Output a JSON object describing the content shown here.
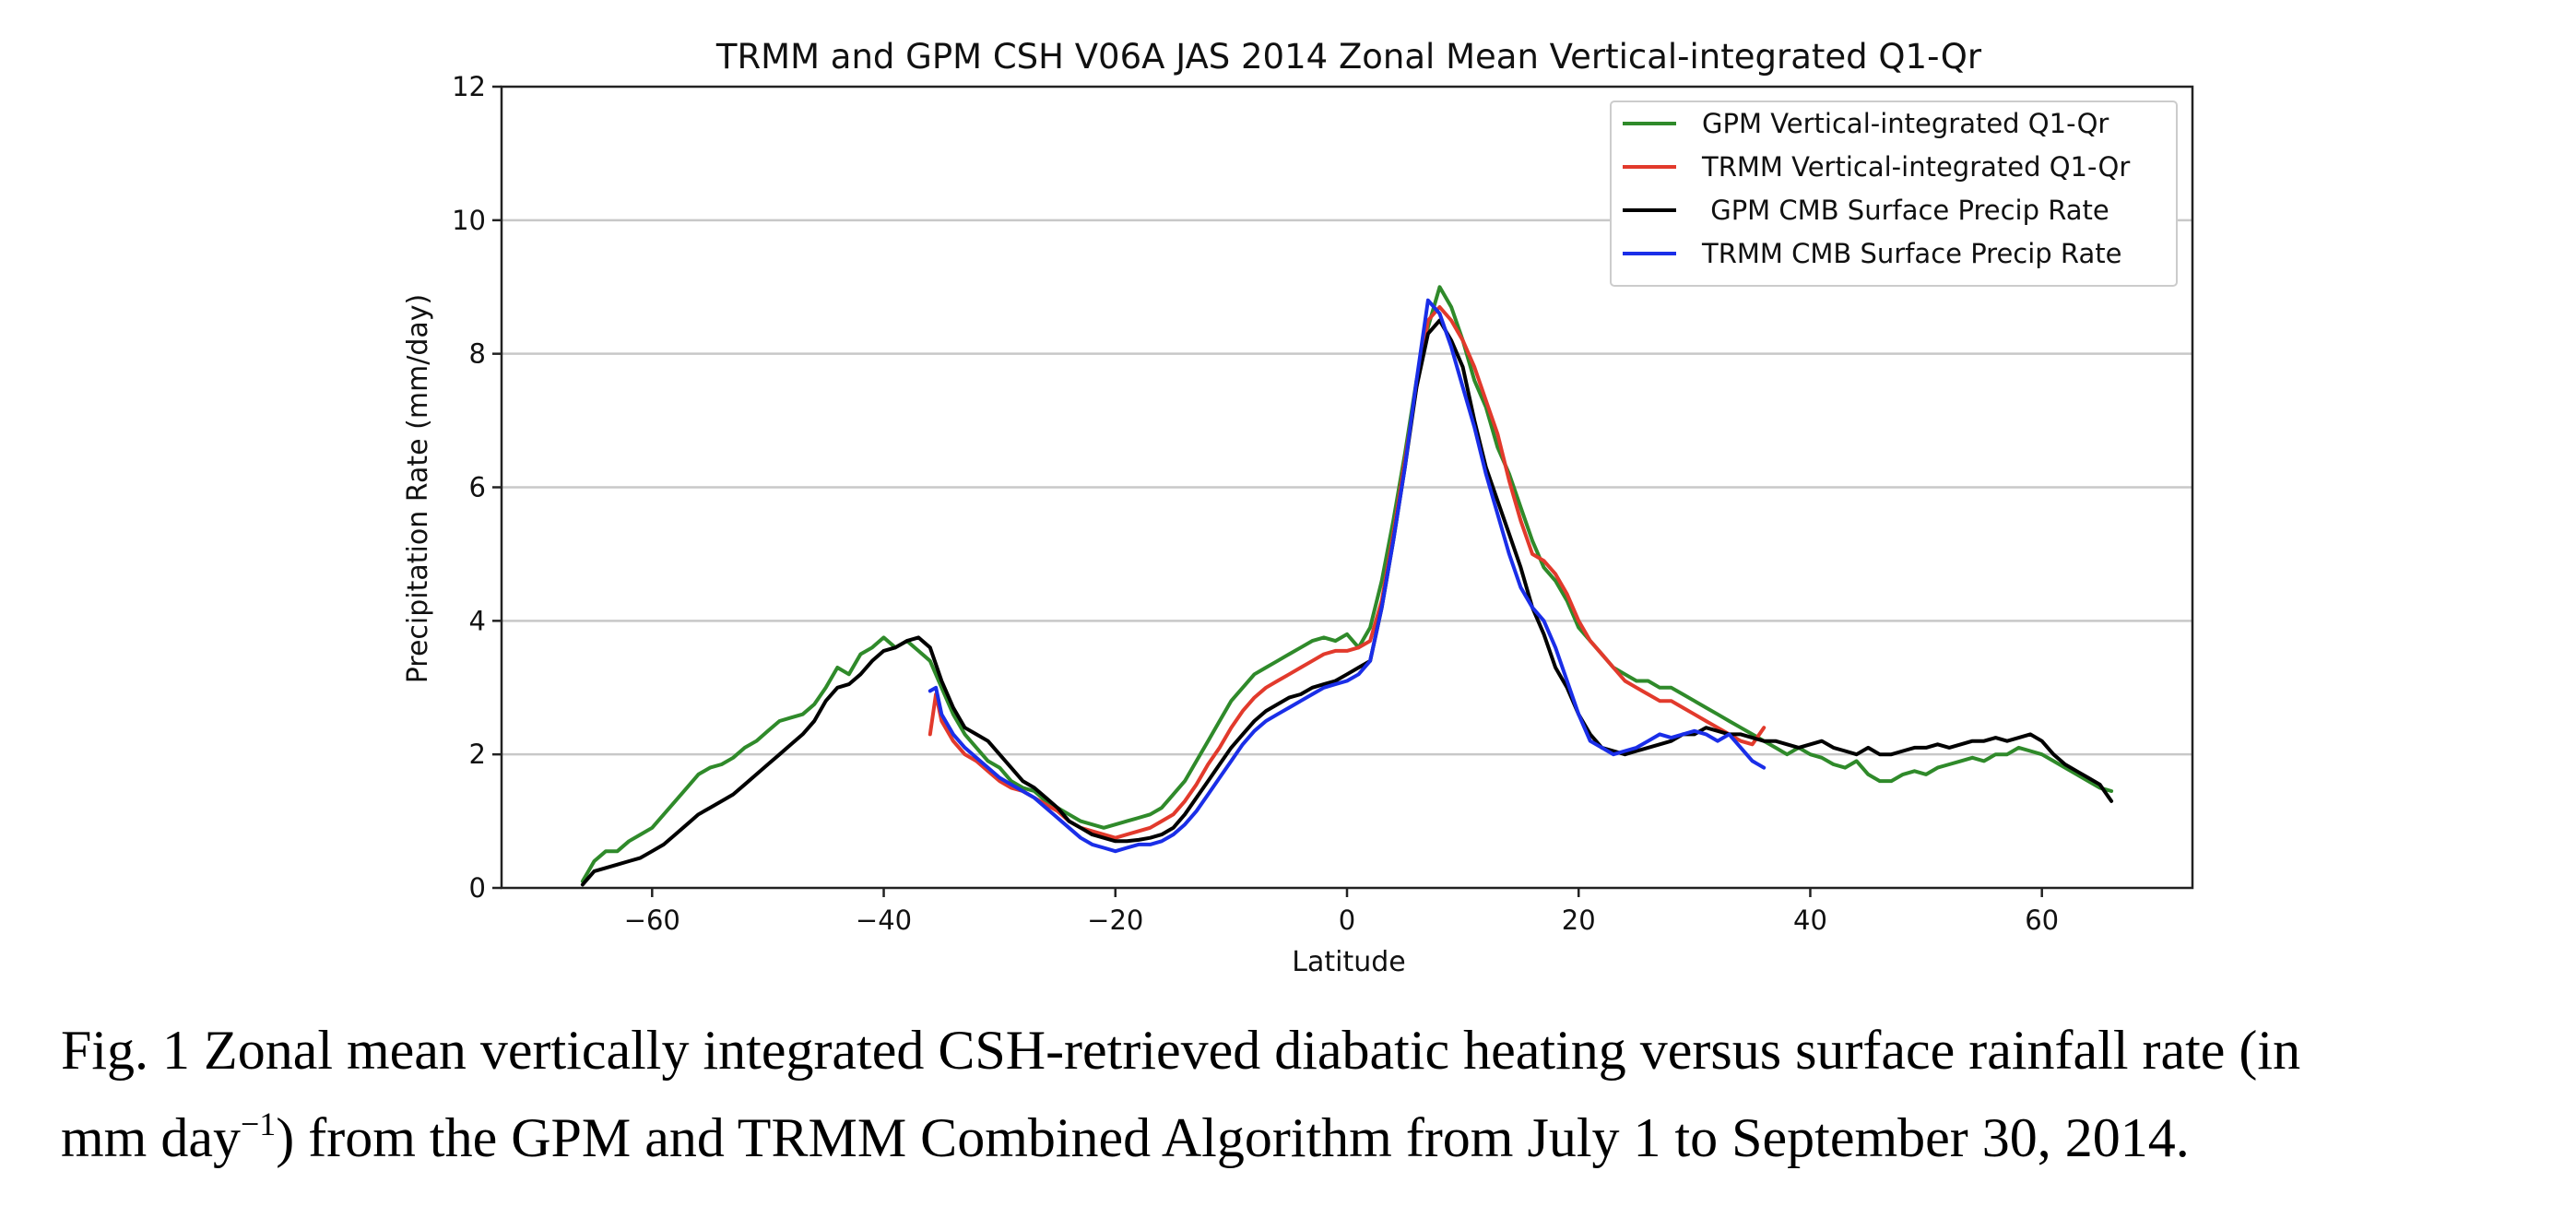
{
  "chart_data": {
    "type": "line",
    "title": "TRMM and GPM CSH V06A JAS 2014 Zonal Mean Vertical-integrated Q1-Qr",
    "xlabel": "Latitude",
    "ylabel": "Precipitation Rate (mm/day)",
    "xlim": [
      -73,
      73
    ],
    "ylim": [
      0,
      12
    ],
    "xticks": [
      -60,
      -40,
      -20,
      0,
      20,
      40,
      60
    ],
    "xtick_labels": [
      "−60",
      "−40",
      "−20",
      "0",
      "20",
      "40",
      "60"
    ],
    "yticks": [
      0,
      2,
      4,
      6,
      8,
      10,
      12
    ],
    "ytick_labels": [
      "0",
      "2",
      "4",
      "6",
      "8",
      "10",
      "12"
    ],
    "grid": "horizontal",
    "legend_position": "top-right",
    "series": [
      {
        "name": "GPM Vertical-integrated Q1-Qr",
        "color": "#2f8a2a",
        "x": [
          -66,
          -65,
          -64,
          -63,
          -62,
          -61,
          -60,
          -59,
          -58,
          -57,
          -56,
          -55,
          -54,
          -53,
          -52,
          -51,
          -50,
          -49,
          -48,
          -47,
          -46,
          -45,
          -44,
          -43,
          -42,
          -41,
          -40,
          -39,
          -38,
          -37,
          -36,
          -35,
          -34,
          -33,
          -32,
          -31,
          -30,
          -29,
          -28,
          -27,
          -26,
          -25,
          -24,
          -23,
          -22,
          -21,
          -20,
          -19,
          -18,
          -17,
          -16,
          -15,
          -14,
          -13,
          -12,
          -11,
          -10,
          -9,
          -8,
          -7,
          -6,
          -5,
          -4,
          -3,
          -2,
          -1,
          0,
          1,
          2,
          3,
          4,
          5,
          6,
          7,
          8,
          9,
          10,
          11,
          12,
          13,
          14,
          15,
          16,
          17,
          18,
          19,
          20,
          21,
          22,
          23,
          24,
          25,
          26,
          27,
          28,
          29,
          30,
          31,
          32,
          33,
          34,
          35,
          36,
          37,
          38,
          39,
          40,
          41,
          42,
          43,
          44,
          45,
          46,
          47,
          48,
          49,
          50,
          51,
          52,
          53,
          54,
          55,
          56,
          57,
          58,
          59,
          60,
          61,
          62,
          63,
          64,
          65,
          66
        ],
        "values": [
          0.1,
          0.4,
          0.55,
          0.55,
          0.7,
          0.8,
          0.9,
          1.1,
          1.3,
          1.5,
          1.7,
          1.8,
          1.85,
          1.95,
          2.1,
          2.2,
          2.35,
          2.5,
          2.55,
          2.6,
          2.75,
          3.0,
          3.3,
          3.2,
          3.5,
          3.6,
          3.75,
          3.6,
          3.7,
          3.55,
          3.4,
          3.0,
          2.6,
          2.3,
          2.1,
          1.9,
          1.8,
          1.6,
          1.5,
          1.45,
          1.3,
          1.2,
          1.1,
          1.0,
          0.95,
          0.9,
          0.95,
          1.0,
          1.05,
          1.1,
          1.2,
          1.4,
          1.6,
          1.9,
          2.2,
          2.5,
          2.8,
          3.0,
          3.2,
          3.3,
          3.4,
          3.5,
          3.6,
          3.7,
          3.75,
          3.7,
          3.8,
          3.6,
          3.9,
          4.6,
          5.5,
          6.5,
          7.6,
          8.4,
          9.0,
          8.7,
          8.2,
          7.6,
          7.2,
          6.6,
          6.2,
          5.7,
          5.2,
          4.8,
          4.6,
          4.3,
          3.9,
          3.7,
          3.5,
          3.3,
          3.2,
          3.1,
          3.1,
          3.0,
          3.0,
          2.9,
          2.8,
          2.7,
          2.6,
          2.5,
          2.4,
          2.3,
          2.2,
          2.1,
          2.0,
          2.1,
          2.0,
          1.95,
          1.85,
          1.8,
          1.9,
          1.7,
          1.6,
          1.6,
          1.7,
          1.75,
          1.7,
          1.8,
          1.85,
          1.9,
          1.95,
          1.9,
          2.0,
          2.0,
          2.1,
          2.05,
          2.0,
          1.9,
          1.8,
          1.7,
          1.6,
          1.5,
          1.45
        ]
      },
      {
        "name": "TRMM Vertical-integrated Q1-Qr",
        "color": "#e23a2c",
        "x": [
          -36,
          -35.5,
          -35,
          -34,
          -33,
          -32,
          -31,
          -30,
          -29,
          -28,
          -27,
          -26,
          -25,
          -24,
          -23,
          -22,
          -21,
          -20,
          -19,
          -18,
          -17,
          -16,
          -15,
          -14,
          -13,
          -12,
          -11,
          -10,
          -9,
          -8,
          -7,
          -6,
          -5,
          -4,
          -3,
          -2,
          -1,
          0,
          1,
          2,
          3,
          4,
          5,
          6,
          7,
          8,
          9,
          10,
          11,
          12,
          13,
          14,
          15,
          16,
          17,
          18,
          19,
          20,
          21,
          22,
          23,
          24,
          25,
          26,
          27,
          28,
          29,
          30,
          31,
          32,
          33,
          34,
          35,
          36
        ],
        "values": [
          2.3,
          2.9,
          2.5,
          2.2,
          2.0,
          1.9,
          1.75,
          1.6,
          1.5,
          1.45,
          1.35,
          1.25,
          1.15,
          1.0,
          0.9,
          0.85,
          0.8,
          0.75,
          0.8,
          0.85,
          0.9,
          1.0,
          1.1,
          1.3,
          1.55,
          1.85,
          2.1,
          2.4,
          2.65,
          2.85,
          3.0,
          3.1,
          3.2,
          3.3,
          3.4,
          3.5,
          3.55,
          3.55,
          3.6,
          3.7,
          4.3,
          5.3,
          6.4,
          7.5,
          8.5,
          8.7,
          8.5,
          8.2,
          7.8,
          7.3,
          6.8,
          6.1,
          5.5,
          5.0,
          4.9,
          4.7,
          4.4,
          4.0,
          3.7,
          3.5,
          3.3,
          3.1,
          3.0,
          2.9,
          2.8,
          2.8,
          2.7,
          2.6,
          2.5,
          2.4,
          2.3,
          2.2,
          2.15,
          2.4
        ]
      },
      {
        "name": " GPM CMB Surface Precip Rate",
        "color": "#000000",
        "x": [
          -66,
          -65,
          -64,
          -63,
          -62,
          -61,
          -60,
          -59,
          -58,
          -57,
          -56,
          -55,
          -54,
          -53,
          -52,
          -51,
          -50,
          -49,
          -48,
          -47,
          -46,
          -45,
          -44,
          -43,
          -42,
          -41,
          -40,
          -39,
          -38,
          -37,
          -36,
          -35,
          -34,
          -33,
          -32,
          -31,
          -30,
          -29,
          -28,
          -27,
          -26,
          -25,
          -24,
          -23,
          -22,
          -21,
          -20,
          -19,
          -18,
          -17,
          -16,
          -15,
          -14,
          -13,
          -12,
          -11,
          -10,
          -9,
          -8,
          -7,
          -6,
          -5,
          -4,
          -3,
          -2,
          -1,
          0,
          1,
          2,
          3,
          4,
          5,
          6,
          7,
          8,
          9,
          10,
          11,
          12,
          13,
          14,
          15,
          16,
          17,
          18,
          19,
          20,
          21,
          22,
          23,
          24,
          25,
          26,
          27,
          28,
          29,
          30,
          31,
          32,
          33,
          34,
          35,
          36,
          37,
          38,
          39,
          40,
          41,
          42,
          43,
          44,
          45,
          46,
          47,
          48,
          49,
          50,
          51,
          52,
          53,
          54,
          55,
          56,
          57,
          58,
          59,
          60,
          61,
          62,
          63,
          64,
          65,
          66
        ],
        "values": [
          0.05,
          0.25,
          0.3,
          0.35,
          0.4,
          0.45,
          0.55,
          0.65,
          0.8,
          0.95,
          1.1,
          1.2,
          1.3,
          1.4,
          1.55,
          1.7,
          1.85,
          2.0,
          2.15,
          2.3,
          2.5,
          2.8,
          3.0,
          3.05,
          3.2,
          3.4,
          3.55,
          3.6,
          3.7,
          3.75,
          3.6,
          3.1,
          2.7,
          2.4,
          2.3,
          2.2,
          2.0,
          1.8,
          1.6,
          1.5,
          1.35,
          1.2,
          1.0,
          0.9,
          0.8,
          0.75,
          0.7,
          0.7,
          0.72,
          0.75,
          0.8,
          0.9,
          1.1,
          1.35,
          1.6,
          1.85,
          2.1,
          2.3,
          2.5,
          2.65,
          2.75,
          2.85,
          2.9,
          3.0,
          3.05,
          3.1,
          3.2,
          3.3,
          3.4,
          4.2,
          5.2,
          6.3,
          7.5,
          8.3,
          8.5,
          8.2,
          7.8,
          7.0,
          6.3,
          5.8,
          5.3,
          4.8,
          4.2,
          3.8,
          3.3,
          3.0,
          2.6,
          2.3,
          2.1,
          2.05,
          2.0,
          2.05,
          2.1,
          2.15,
          2.2,
          2.3,
          2.3,
          2.4,
          2.35,
          2.3,
          2.3,
          2.25,
          2.2,
          2.2,
          2.15,
          2.1,
          2.15,
          2.2,
          2.1,
          2.05,
          2.0,
          2.1,
          2.0,
          2.0,
          2.05,
          2.1,
          2.1,
          2.15,
          2.1,
          2.15,
          2.2,
          2.2,
          2.25,
          2.2,
          2.25,
          2.3,
          2.2,
          2.0,
          1.85,
          1.75,
          1.65,
          1.55,
          1.3
        ]
      },
      {
        "name": "TRMM CMB Surface Precip Rate",
        "color": "#1a2ee8",
        "x": [
          -36,
          -35.5,
          -35,
          -34,
          -33,
          -32,
          -31,
          -30,
          -29,
          -28,
          -27,
          -26,
          -25,
          -24,
          -23,
          -22,
          -21,
          -20,
          -19,
          -18,
          -17,
          -16,
          -15,
          -14,
          -13,
          -12,
          -11,
          -10,
          -9,
          -8,
          -7,
          -6,
          -5,
          -4,
          -3,
          -2,
          -1,
          0,
          1,
          2,
          3,
          4,
          5,
          6,
          7,
          8,
          9,
          10,
          11,
          12,
          13,
          14,
          15,
          16,
          17,
          18,
          19,
          20,
          21,
          22,
          23,
          24,
          25,
          26,
          27,
          28,
          29,
          30,
          31,
          32,
          33,
          34,
          35,
          36
        ],
        "values": [
          2.95,
          3.0,
          2.6,
          2.3,
          2.1,
          1.95,
          1.8,
          1.65,
          1.55,
          1.45,
          1.35,
          1.2,
          1.05,
          0.9,
          0.75,
          0.65,
          0.6,
          0.55,
          0.6,
          0.65,
          0.65,
          0.7,
          0.8,
          0.95,
          1.15,
          1.4,
          1.65,
          1.9,
          2.15,
          2.35,
          2.5,
          2.6,
          2.7,
          2.8,
          2.9,
          3.0,
          3.05,
          3.1,
          3.2,
          3.4,
          4.2,
          5.2,
          6.3,
          7.6,
          8.8,
          8.6,
          8.1,
          7.5,
          6.9,
          6.2,
          5.6,
          5.0,
          4.5,
          4.2,
          4.0,
          3.6,
          3.1,
          2.6,
          2.2,
          2.1,
          2.0,
          2.05,
          2.1,
          2.2,
          2.3,
          2.25,
          2.3,
          2.35,
          2.3,
          2.2,
          2.3,
          2.1,
          1.9,
          1.8
        ]
      }
    ]
  },
  "caption": {
    "line1": "Fig. 1 Zonal mean vertically integrated CSH-retrieved diabatic heating versus surface rainfall rate (in",
    "line2_pre": "mm day",
    "line2_sup": "−1",
    "line2_post": ") from the GPM and TRMM Combined Algorithm from July 1 to September 30, 2014."
  }
}
